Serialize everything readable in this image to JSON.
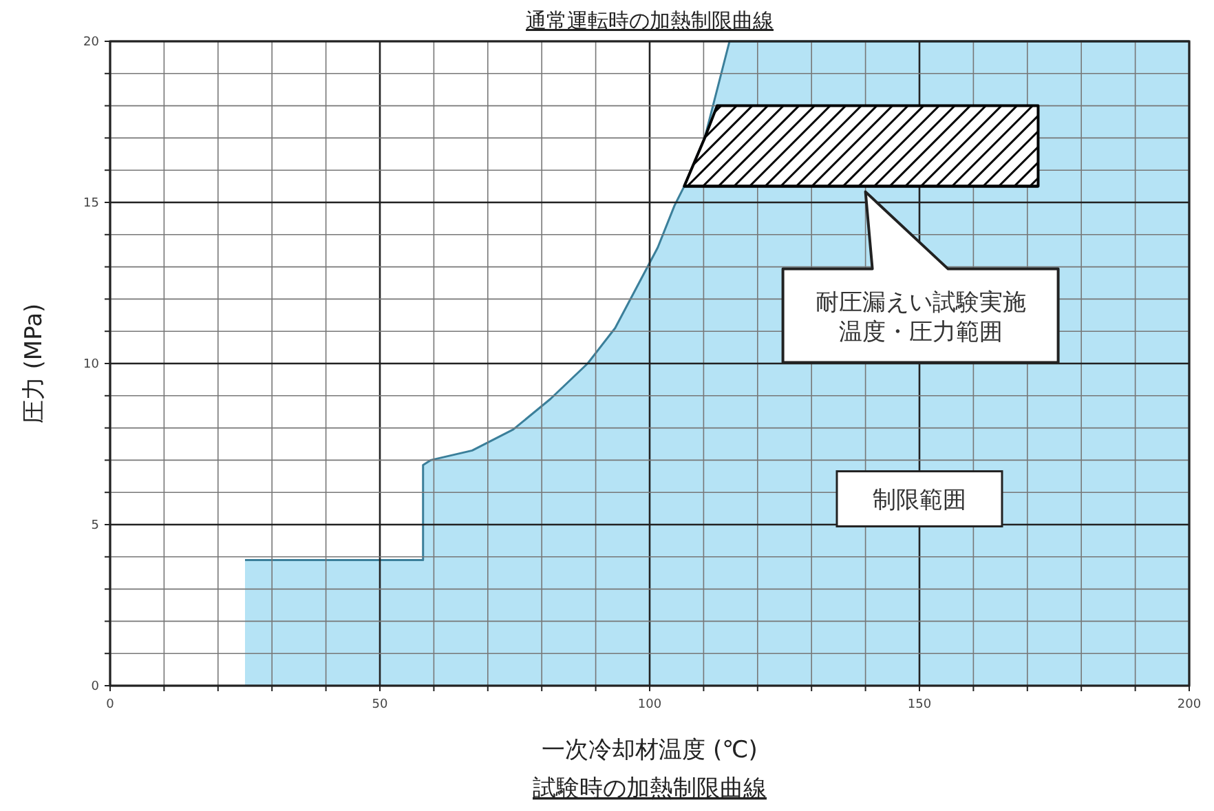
{
  "chart_data": {
    "type": "area",
    "title": "試験時の加熱制限曲線",
    "xlabel": "一次冷却材温度 (℃)",
    "ylabel": "圧力 (MPa)",
    "annotations": [
      "通常運転時の加熱制限曲線",
      "耐圧漏えい試験実施温度・圧力範囲",
      "制限範囲"
    ],
    "xlim": [
      0,
      200
    ],
    "xticks": [
      0,
      {
        "value": 10,
        "label": null
      },
      {
        "value": 20,
        "label": null
      },
      {
        "value": 30,
        "label": null
      },
      {
        "value": 40,
        "label": null
      },
      50,
      {
        "value": 60,
        "label": null
      },
      {
        "value": 70,
        "label": null
      },
      {
        "value": 80,
        "label": null
      },
      {
        "value": 90,
        "label": null
      },
      100,
      {
        "value": 110,
        "label": null
      },
      {
        "value": 120,
        "label": null
      },
      {
        "value": 130,
        "label": null
      },
      {
        "value": 140,
        "label": null
      },
      150,
      {
        "value": 160,
        "label": null
      },
      {
        "value": 170,
        "label": null
      },
      {
        "value": 180,
        "label": null
      },
      {
        "value": 190,
        "label": null
      },
      200
    ],
    "ylim": [
      0,
      20
    ],
    "yticks": [
      0,
      {
        "value": 1,
        "label": null
      },
      {
        "value": 2,
        "label": null
      },
      {
        "value": 3,
        "label": null
      },
      {
        "value": 4,
        "label": null
      },
      5,
      {
        "value": 6,
        "label": null
      },
      {
        "value": 7,
        "label": null
      },
      {
        "value": 8,
        "label": null
      },
      {
        "value": 9,
        "label": null
      },
      10,
      {
        "value": 11,
        "label": null
      },
      {
        "value": 12,
        "label": null
      },
      {
        "value": 13,
        "label": null
      },
      {
        "value": 14,
        "label": null
      },
      15,
      {
        "value": 16,
        "label": null
      },
      {
        "value": 17,
        "label": null
      },
      {
        "value": 18,
        "label": null
      },
      {
        "value": 19,
        "label": null
      },
      20
    ],
    "grid": true,
    "series": [
      {
        "color": "#b5e3f5",
        "x": [
          25,
          58,
          58,
          59.4,
          67.1,
          74.7,
          81.6,
          88.5,
          93.6,
          97.7,
          101.5,
          104.6,
          106.4,
          110.2,
          114.8,
          200
        ],
        "values": [
          3.9,
          3.9,
          6.85,
          7.0,
          7.3,
          7.95,
          8.9,
          10.0,
          11.1,
          12.4,
          13.6,
          14.9,
          15.5,
          17.0,
          20,
          20
        ]
      },
      {
        "type": "line",
        "color": "#000000",
        "x": [
          106.4,
          110.2,
          112.5,
          172
        ],
        "values": [
          15.5,
          15.5,
          15.5,
          15.5
        ],
        "lower": [
          15.5,
          15.5,
          15.5,
          15.5
        ],
        "upper": [
          15.5,
          17.0,
          18,
          18
        ]
      }
    ]
  }
}
